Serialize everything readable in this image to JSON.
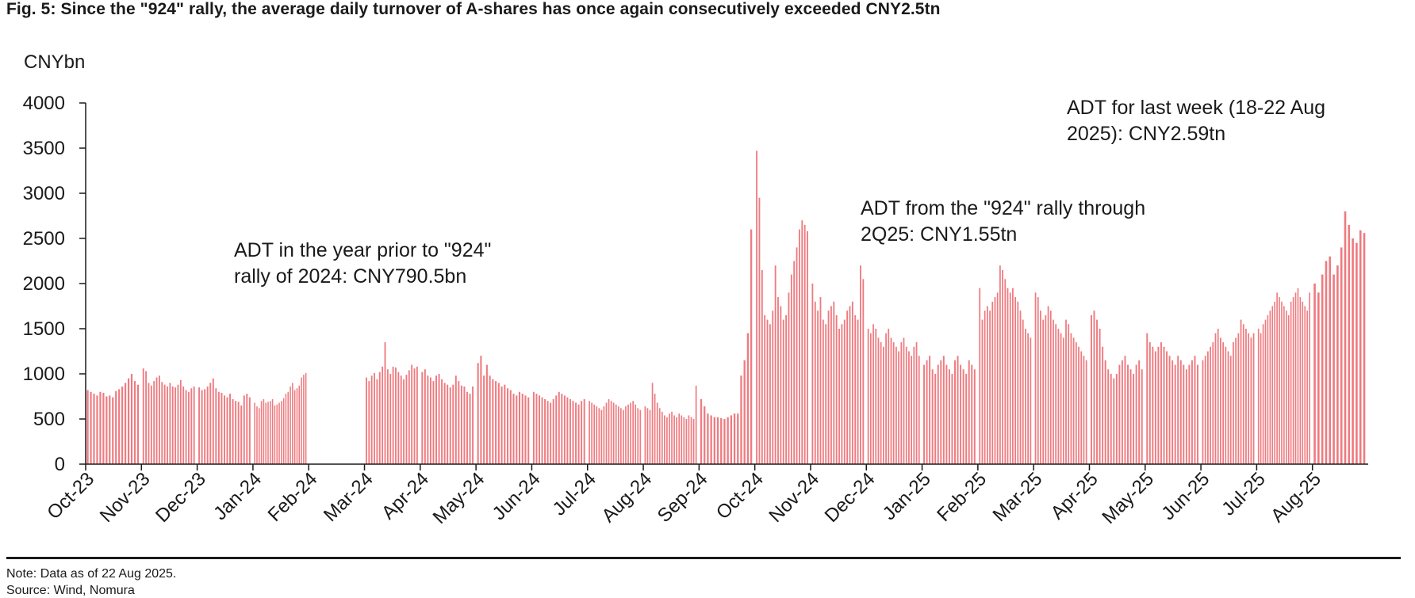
{
  "figure": {
    "title": "Fig. 5: Since the \"924\" rally, the average daily turnover of A-shares has once again consecutively exceeded CNY2.5tn",
    "note": "Note: Data as of 22 Aug 2025.",
    "source": "Source: Wind, Nomura"
  },
  "colors": {
    "bar": "#e84f55",
    "axis": "#1a1a1a"
  },
  "chart_data": {
    "type": "bar",
    "title": "Fig. 5: Since the \"924\" rally, the average daily turnover of A-shares has once again consecutively exceeded CNY2.5tn",
    "ylabel": "CNYbn",
    "xlabel": "",
    "ylim": [
      0,
      4000
    ],
    "yticks": [
      "0",
      "500",
      "1000",
      "1500",
      "2000",
      "2500",
      "3000",
      "3500",
      "4000"
    ],
    "month_labels": [
      "Oct-23",
      "Nov-23",
      "Dec-23",
      "Jan-24",
      "Feb-24",
      "Mar-24",
      "Apr-24",
      "May-24",
      "Jun-24",
      "Jul-24",
      "Aug-24",
      "Sep-24",
      "Oct-24",
      "Nov-24",
      "Dec-24",
      "Jan-25",
      "Feb-25",
      "Mar-25",
      "Apr-25",
      "May-25",
      "Jun-25",
      "Jul-25",
      "Aug-25"
    ],
    "grid": false,
    "legend": "none",
    "series": [
      {
        "monthly_daily_values": [
          [
            820,
            800,
            780,
            760,
            800,
            790,
            750,
            760,
            740,
            810,
            830,
            860,
            900,
            950,
            1000,
            920,
            880
          ],
          [
            1060,
            1030,
            900,
            870,
            920,
            960,
            980,
            910,
            880,
            860,
            900,
            860,
            850,
            880,
            930,
            860,
            820,
            800,
            840,
            860
          ],
          [
            850,
            820,
            830,
            860,
            900,
            950,
            840,
            800,
            790,
            760,
            740,
            780,
            720,
            700,
            690,
            650,
            760,
            780,
            740
          ],
          [
            680,
            640,
            620,
            700,
            720,
            680,
            690,
            700,
            720,
            650,
            660,
            680,
            700,
            730,
            780,
            800,
            860,
            900,
            820,
            840,
            870,
            960,
            990,
            1010
          ],
          [],
          [
            960,
            920,
            980,
            1010,
            940,
            1020,
            1080,
            1350,
            1050,
            1000,
            1080,
            1070,
            1020,
            980,
            940,
            990,
            1040,
            1100,
            1060,
            1080
          ],
          [
            1020,
            1050,
            980,
            960,
            920,
            980,
            1000,
            940,
            900,
            880,
            850,
            880,
            980,
            920,
            870,
            860,
            800,
            780,
            860
          ],
          [
            1120,
            1200,
            980,
            1100,
            980,
            940,
            920,
            900,
            860,
            880,
            840,
            820,
            780,
            760,
            800,
            780,
            760,
            740
          ],
          [
            800,
            780,
            760,
            740,
            720,
            700,
            680,
            720,
            760,
            800,
            780,
            760,
            740,
            720,
            700,
            680,
            660,
            700,
            720
          ],
          [
            700,
            680,
            660,
            640,
            620,
            600,
            640,
            680,
            720,
            700,
            680,
            660,
            640,
            620,
            600,
            640,
            660,
            680,
            700,
            660,
            620,
            600
          ],
          [
            640,
            620,
            600,
            900,
            780,
            680,
            620,
            580,
            540,
            520,
            560,
            580,
            540,
            520,
            560,
            540,
            520,
            500,
            540,
            520,
            500,
            870
          ],
          [
            720,
            640,
            560,
            540,
            520,
            520,
            510,
            500,
            520,
            540,
            560,
            560,
            980,
            1150,
            1450,
            2600
          ],
          [
            3470,
            2950,
            2150,
            1650,
            1600,
            1550,
            1700,
            2200,
            1850,
            1750,
            1600,
            1650,
            1900,
            2100,
            2250,
            2400,
            2600,
            2700,
            2650,
            2580
          ],
          [
            2000,
            1800,
            1700,
            1850,
            1600,
            1550,
            1700,
            1750,
            1800,
            1650,
            1500,
            1550,
            1600,
            1700,
            1750,
            1800,
            1650,
            1600,
            2200,
            2050
          ],
          [
            1500,
            1450,
            1550,
            1500,
            1400,
            1350,
            1300,
            1450,
            1500,
            1400,
            1350,
            1300,
            1250,
            1350,
            1400,
            1300,
            1250,
            1200,
            1300,
            1350,
            1200
          ],
          [
            1100,
            1150,
            1200,
            1050,
            1000,
            1100,
            1150,
            1200,
            1100,
            1050,
            1000,
            1150,
            1200,
            1100,
            1050,
            1000,
            1150,
            1100,
            1050
          ],
          [
            1950,
            1600,
            1700,
            1750,
            1700,
            1800,
            1850,
            1900,
            2200,
            2150,
            2050,
            1950,
            1900,
            1950,
            1850,
            1800,
            1700,
            1600,
            1500,
            1450,
            1400
          ],
          [
            1900,
            1850,
            1700,
            1600,
            1650,
            1750,
            1700,
            1600,
            1550,
            1500,
            1450,
            1400,
            1600,
            1550,
            1450,
            1400,
            1350,
            1300,
            1250,
            1200,
            1150
          ],
          [
            1650,
            1700,
            1600,
            1500,
            1300,
            1150,
            1050,
            1000,
            950,
            1000,
            1100,
            1150,
            1200,
            1100,
            1050,
            1000,
            1100,
            1150,
            1050
          ],
          [
            1450,
            1350,
            1300,
            1250,
            1300,
            1350,
            1300,
            1250,
            1200,
            1150,
            1100,
            1200,
            1150,
            1100,
            1050,
            1100,
            1150,
            1200,
            1100
          ],
          [
            1150,
            1200,
            1250,
            1300,
            1350,
            1450,
            1500,
            1400,
            1350,
            1300,
            1250,
            1200,
            1350,
            1400,
            1450,
            1600,
            1550,
            1500,
            1450,
            1400,
            1450
          ],
          [
            1500,
            1450,
            1550,
            1600,
            1650,
            1700,
            1750,
            1800,
            1900,
            1850,
            1800,
            1750,
            1700,
            1650,
            1800,
            1850,
            1900,
            1950,
            1850,
            1800,
            1750,
            1700,
            1900
          ],
          [
            2000,
            1900,
            2100,
            2250,
            2300,
            2100,
            2200,
            2400,
            2800,
            2650,
            2500,
            2450,
            2590,
            2560
          ]
        ]
      }
    ],
    "annotations": [
      {
        "lines": [
          "ADT in the year prior to \"924\"",
          "rally of 2024: CNY790.5bn"
        ]
      },
      {
        "lines": [
          "ADT from the \"924\" rally through",
          "2Q25: CNY1.55tn"
        ]
      },
      {
        "lines": [
          "ADT for last week (18-22 Aug",
          "2025): CNY2.59tn"
        ]
      }
    ]
  }
}
